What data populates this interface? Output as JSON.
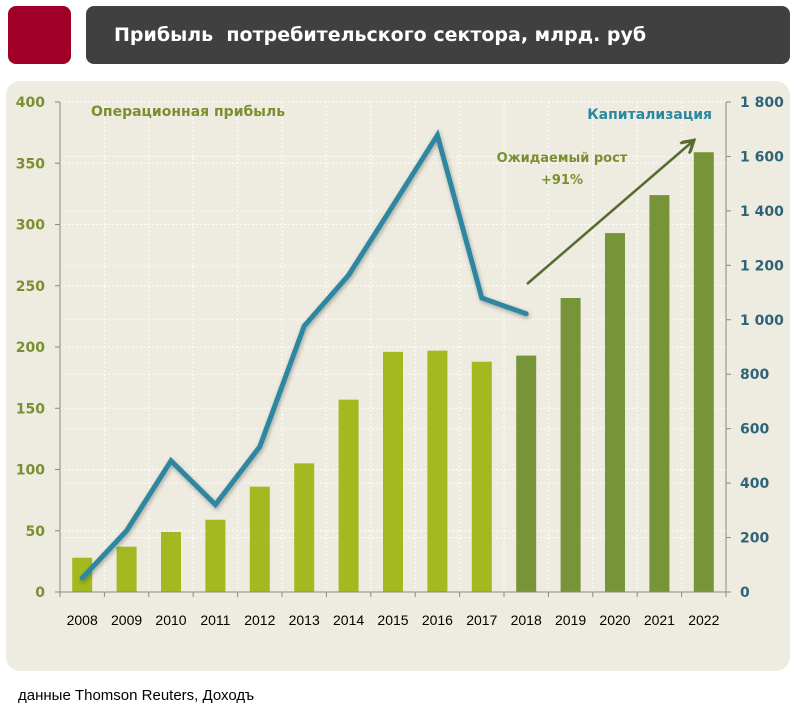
{
  "header": {
    "title": "Прибыль  потребительского сектора, млрд. руб"
  },
  "footer": {
    "source": "данные Thomson Reuters, Доходъ"
  },
  "colors": {
    "accent_square": "#a00028",
    "header_bg": "#404040",
    "panel_bg": "#eeebe0",
    "bar_actual": "#a2b91f",
    "bar_forecast": "#789439",
    "line": "#2e87a0",
    "left_axis_text": "#7a9030",
    "right_axis_text": "#2e6478",
    "arrow": "#556b2f"
  },
  "chart_data": {
    "type": "bar+line",
    "categories": [
      "2008",
      "2009",
      "2010",
      "2011",
      "2012",
      "2013",
      "2014",
      "2015",
      "2016",
      "2017",
      "2018",
      "2019",
      "2020",
      "2021",
      "2022"
    ],
    "series": [
      {
        "name": "Операционная прибыль",
        "type": "bar",
        "axis": "left",
        "values": [
          28,
          37,
          49,
          59,
          86,
          105,
          157,
          196,
          197,
          188,
          193,
          240,
          293,
          324,
          359
        ],
        "forecast_from": "2018"
      },
      {
        "name": "Капитализация",
        "type": "line",
        "axis": "right",
        "values": [
          51,
          225,
          482,
          321,
          534,
          977,
          1164,
          1420,
          1678,
          1080,
          1022,
          null,
          null,
          null,
          null
        ]
      }
    ],
    "left_axis": {
      "ylim": [
        0,
        400
      ],
      "ticks": [
        "0",
        "50",
        "100",
        "150",
        "200",
        "250",
        "300",
        "350",
        "400"
      ]
    },
    "right_axis": {
      "ylim": [
        0,
        1800
      ],
      "ticks": [
        "0",
        "200",
        "400",
        "600",
        "800",
        "1 000",
        "1 200",
        "1 400",
        "1 600",
        "1 800"
      ]
    },
    "annotations": {
      "growth_label": "Ожидаемый рост",
      "growth_value": "+91%"
    },
    "grid": true
  }
}
